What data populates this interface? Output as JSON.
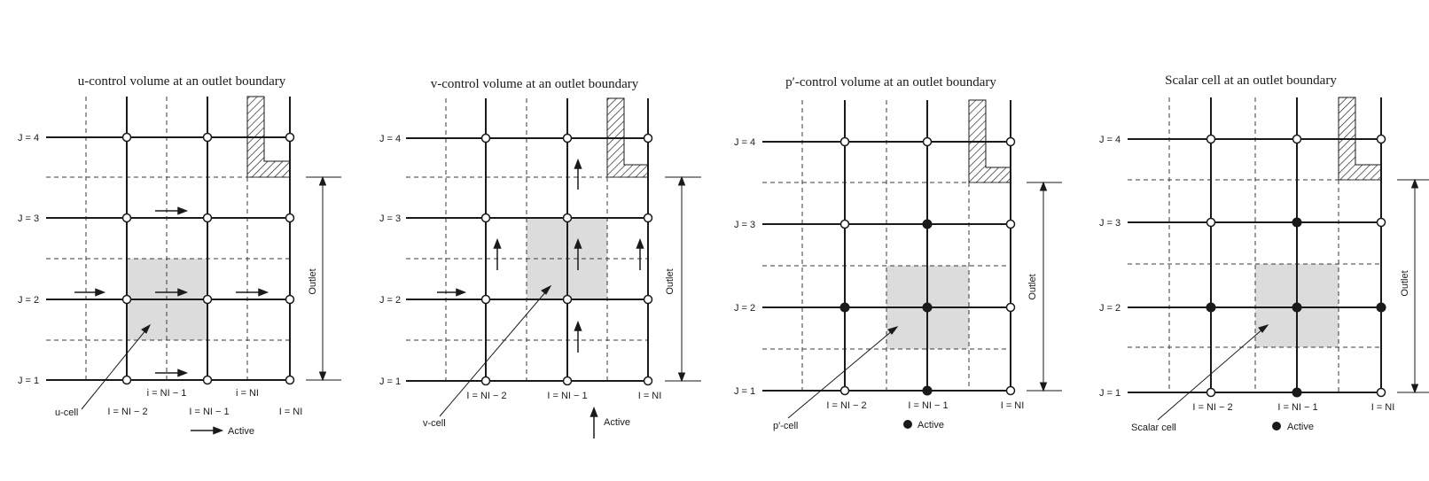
{
  "colors": {
    "ink": "#1a1a1a",
    "cell_fill": "#dcdcdd",
    "dashed": "#3a3a3a"
  },
  "panels": [
    {
      "title": "u-control volume at an outlet boundary",
      "j_labels": [
        "J = 4",
        "J = 3",
        "J = 2",
        "J = 1"
      ],
      "i_labels_bottom": [
        "I = NI − 2",
        "I = NI − 1",
        "I = NI"
      ],
      "i_labels_top": [
        "i = NI − 1",
        "i = NI"
      ],
      "outlet_label": "Outlet",
      "cell_label": "u-cell",
      "legend_label": "Active",
      "legend_icon": "right-arrow-icon"
    },
    {
      "title": "v-control volume at an outlet boundary",
      "j_labels": [
        "J = 4",
        "J = 3",
        "J = 2",
        "J = 1"
      ],
      "i_labels_bottom": [
        "I = NI − 2",
        "I = NI − 1",
        "I = NI"
      ],
      "outlet_label": "Outlet",
      "cell_label": "v-cell",
      "legend_label": "Active",
      "legend_icon": "up-arrow-icon"
    },
    {
      "title": "p′-control volume at an outlet boundary",
      "j_labels": [
        "J = 4",
        "J = 3",
        "J = 2",
        "J = 1"
      ],
      "i_labels_bottom": [
        "I = NI − 2",
        "I = NI − 1",
        "I = NI"
      ],
      "outlet_label": "Outlet",
      "cell_label": "p′-cell",
      "legend_label": "Active",
      "legend_icon": "filled-dot-icon"
    },
    {
      "title": "Scalar cell at an outlet boundary",
      "j_labels": [
        "J = 4",
        "J = 3",
        "J = 2",
        "J = 1"
      ],
      "i_labels_bottom": [
        "I = NI − 2",
        "I = NI − 1",
        "I = NI"
      ],
      "outlet_label": "Outlet",
      "cell_label": "Scalar cell",
      "legend_label": "Active",
      "legend_icon": "filled-dot-icon"
    }
  ]
}
